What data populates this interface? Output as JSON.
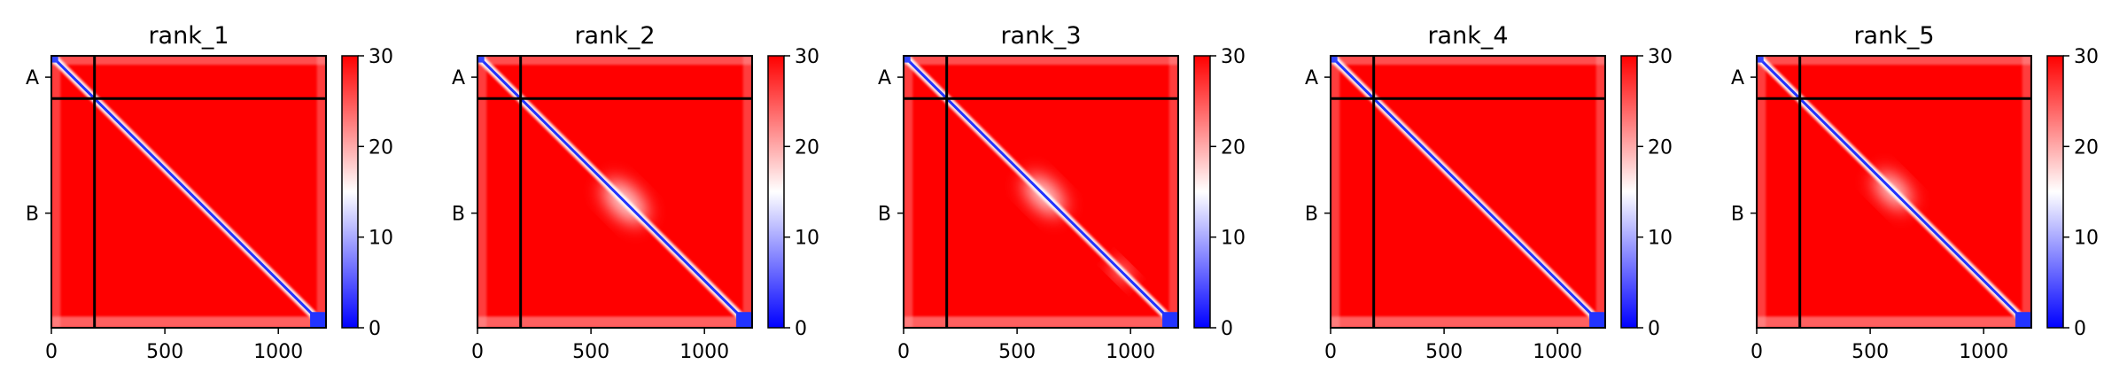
{
  "chart_data": [
    {
      "type": "heatmap",
      "title": "rank_1",
      "xticks": [
        0,
        500,
        1000
      ],
      "xlim": [
        0,
        1210
      ],
      "yticks": [
        "A",
        "B"
      ],
      "chain_boundary": 190,
      "colorbar": {
        "ticks": [
          0,
          10,
          20,
          30
        ],
        "range": [
          0,
          30
        ],
        "colormap": [
          "#0000ff",
          "#ffffff",
          "#ff0000"
        ]
      },
      "diagonal_hotspots": [],
      "offdiag_patches": []
    },
    {
      "type": "heatmap",
      "title": "rank_2",
      "xticks": [
        0,
        500,
        1000
      ],
      "xlim": [
        0,
        1210
      ],
      "yticks": [
        "A",
        "B"
      ],
      "chain_boundary": 190,
      "colorbar": {
        "ticks": [
          0,
          10,
          20,
          30
        ],
        "range": [
          0,
          30
        ],
        "colormap": [
          "#0000ff",
          "#ffffff",
          "#ff0000"
        ]
      },
      "diagonal_hotspots": [],
      "offdiag_patches": [
        {
          "x": 650,
          "y": 650,
          "r": 120
        }
      ]
    },
    {
      "type": "heatmap",
      "title": "rank_3",
      "xticks": [
        0,
        500,
        1000
      ],
      "xlim": [
        0,
        1210
      ],
      "yticks": [
        "A",
        "B"
      ],
      "chain_boundary": 190,
      "colorbar": {
        "ticks": [
          0,
          10,
          20,
          30
        ],
        "range": [
          0,
          30
        ],
        "colormap": [
          "#0000ff",
          "#ffffff",
          "#ff0000"
        ]
      },
      "diagonal_hotspots": [],
      "offdiag_patches": [
        {
          "x": 620,
          "y": 620,
          "r": 110
        },
        {
          "x": 960,
          "y": 960,
          "r": 50
        }
      ]
    },
    {
      "type": "heatmap",
      "title": "rank_4",
      "xticks": [
        0,
        500,
        1000
      ],
      "xlim": [
        0,
        1210
      ],
      "yticks": [
        "A",
        "B"
      ],
      "chain_boundary": 190,
      "colorbar": {
        "ticks": [
          0,
          10,
          20,
          30
        ],
        "range": [
          0,
          30
        ],
        "colormap": [
          "#0000ff",
          "#ffffff",
          "#ff0000"
        ]
      },
      "diagonal_hotspots": [],
      "offdiag_patches": []
    },
    {
      "type": "heatmap",
      "title": "rank_5",
      "xticks": [
        0,
        500,
        1000
      ],
      "xlim": [
        0,
        1210
      ],
      "yticks": [
        "A",
        "B"
      ],
      "chain_boundary": 190,
      "colorbar": {
        "ticks": [
          0,
          10,
          20,
          30
        ],
        "range": [
          0,
          30
        ],
        "colormap": [
          "#0000ff",
          "#ffffff",
          "#ff0000"
        ]
      },
      "diagonal_hotspots": [],
      "offdiag_patches": [
        {
          "x": 600,
          "y": 600,
          "r": 100
        }
      ]
    }
  ]
}
